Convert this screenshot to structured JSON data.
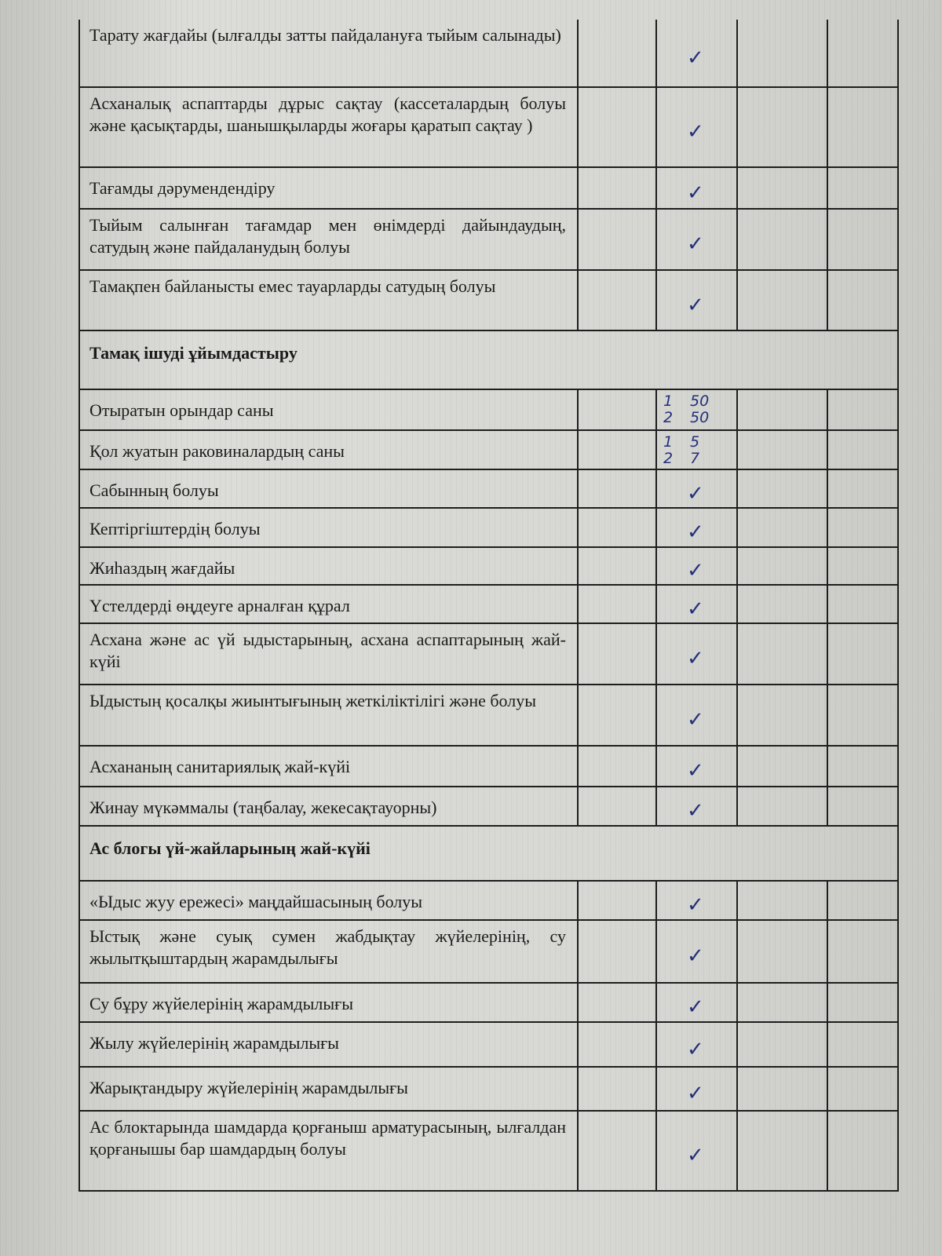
{
  "colors": {
    "ink": "#1b1b1b",
    "pen": "#23307a",
    "paper": "#d6d6d2"
  },
  "rows": [
    {
      "type": "item",
      "text": "Тарату жағдайы (ылғалды затты пайдалануға тыйым салынады)",
      "mark": "check"
    },
    {
      "type": "item",
      "text": "Асханалық аспаптарды дұрыс сақтау (кассеталардың болуы және қасықтарды, шанышқыларды жоғары қаратып сақтау )",
      "mark": "check"
    },
    {
      "type": "item",
      "text": "Тағамды дәрумендендіру",
      "mark": "check"
    },
    {
      "type": "item",
      "text": "Тыйым салынған тағамдар мен өнімдерді дайындаудың, сатудың және пайдаланудың болуы",
      "mark": "check"
    },
    {
      "type": "item",
      "text": "Тамақпен байланысты емес тауарларды сатудың болуы",
      "mark": "check"
    },
    {
      "type": "section",
      "text": "Тамақ ішуді ұйымдастыру"
    },
    {
      "type": "item",
      "text": "Отыратын орындар саны",
      "mark": "values",
      "values": [
        [
          "1",
          "50"
        ],
        [
          "2",
          "50"
        ]
      ]
    },
    {
      "type": "item",
      "text": "Қол жуатын раковиналардың саны",
      "mark": "values",
      "values": [
        [
          "1",
          "5"
        ],
        [
          "2",
          "7"
        ]
      ]
    },
    {
      "type": "item",
      "text": "Сабынның болуы",
      "mark": "check"
    },
    {
      "type": "item",
      "text": "Кептіргіштердің болуы",
      "mark": "check"
    },
    {
      "type": "item",
      "text": "Жиһаздың жағдайы",
      "mark": "check"
    },
    {
      "type": "item",
      "text": "Үстелдерді өңдеуге арналған құрал",
      "mark": "check"
    },
    {
      "type": "item",
      "text": "Асхана және ас үй ыдыстарының, асхана аспаптарының жай-күйі",
      "mark": "check"
    },
    {
      "type": "item",
      "text": "Ыдыстың қосалқы жиынтығының жеткіліктілігі және болуы",
      "mark": "check"
    },
    {
      "type": "item",
      "text": "Асхананың санитариялық жай-күйі",
      "mark": "check"
    },
    {
      "type": "item",
      "text": "Жинау мүкәммалы (таңбалау, жекесақтауорны)",
      "mark": "check"
    },
    {
      "type": "section",
      "text": "Ас блогы үй-жайларының жай-күйі"
    },
    {
      "type": "item",
      "text": "«Ыдыс жуу ережесі» маңдайшасының болуы",
      "mark": "check"
    },
    {
      "type": "item",
      "text": "Ыстық және суық сумен жабдықтау жүйелерінің, су жылытқыштардың жарамдылығы",
      "mark": "check"
    },
    {
      "type": "item",
      "text": "Су бұру жүйелерінің жарамдылығы",
      "mark": "check"
    },
    {
      "type": "item",
      "text": "Жылу жүйелерінің жарамдылығы",
      "mark": "check"
    },
    {
      "type": "item",
      "text": "Жарықтандыру жүйелерінің жарамдылығы",
      "mark": "check"
    },
    {
      "type": "item",
      "text": "Ас блоктарында шамдарда қорғаныш арматурасының, ылғалдан қорғанышы бар шамдардың болуы",
      "mark": "check"
    }
  ],
  "check_glyph": "✓"
}
